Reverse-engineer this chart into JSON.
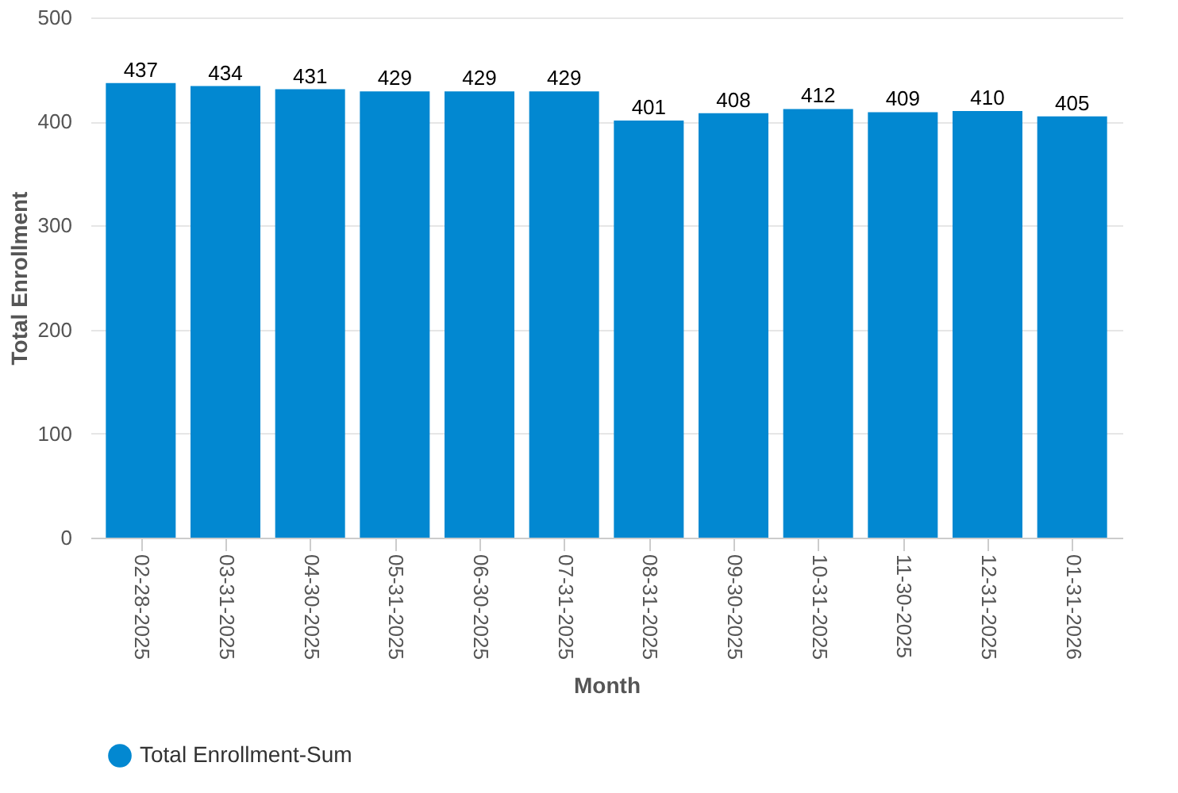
{
  "chart_data": {
    "type": "bar",
    "xlabel": "Month",
    "ylabel": "Total Enrollment",
    "categories": [
      "02-28-2025",
      "03-31-2025",
      "04-30-2025",
      "05-31-2025",
      "06-30-2025",
      "07-31-2025",
      "08-31-2025",
      "09-30-2025",
      "10-31-2025",
      "11-30-2025",
      "12-31-2025",
      "01-31-2026"
    ],
    "series": [
      {
        "name": "Total Enrollment-Sum",
        "color": "#0288d1",
        "values": [
          437,
          434,
          431,
          429,
          429,
          429,
          401,
          408,
          412,
          409,
          410,
          405
        ]
      }
    ],
    "ylim": [
      0,
      500
    ],
    "yticks": [
      0,
      100,
      200,
      300,
      400,
      500
    ],
    "grid": "y",
    "legend": "bottom",
    "data_labels": true
  }
}
